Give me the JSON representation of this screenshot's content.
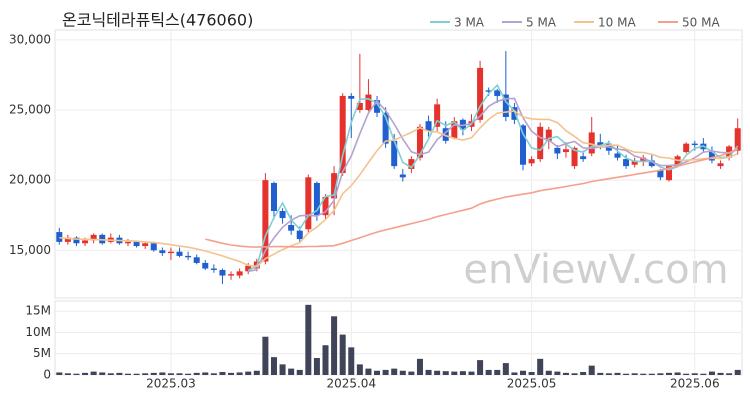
{
  "chart_data": {
    "type": "candlestick",
    "title": "온코닉테라퓨틱스(476060)",
    "watermark": "enViewV.com",
    "categories": [
      null,
      null,
      null,
      null,
      null,
      null,
      null,
      null,
      null,
      null,
      null,
      null,
      null,
      "2025.03",
      null,
      null,
      null,
      null,
      null,
      null,
      null,
      null,
      null,
      null,
      null,
      null,
      null,
      null,
      null,
      null,
      null,
      null,
      null,
      null,
      "2025.04",
      null,
      null,
      null,
      null,
      null,
      null,
      null,
      null,
      null,
      null,
      null,
      null,
      null,
      null,
      null,
      null,
      null,
      null,
      null,
      null,
      "2025.05",
      null,
      null,
      null,
      null,
      null,
      null,
      null,
      null,
      null,
      null,
      null,
      null,
      null,
      null,
      null,
      null,
      null,
      null,
      "2025.06",
      null,
      null,
      null,
      null,
      null
    ],
    "open": [
      16300,
      15600,
      15900,
      15500,
      15700,
      16100,
      15600,
      15900,
      15500,
      15600,
      15300,
      15500,
      15000,
      14800,
      14900,
      14600,
      14500,
      14100,
      13700,
      13600,
      13200,
      13200,
      13500,
      13700,
      14200,
      19800,
      17800,
      16800,
      16400,
      16500,
      19800,
      17500,
      18700,
      20500,
      26000,
      25000,
      25000,
      25700,
      24800,
      22800,
      20400,
      20800,
      21600,
      24200,
      23800,
      23700,
      23000,
      24300,
      23800,
      24300,
      26400,
      26400,
      26100,
      25200,
      23900,
      21200,
      21500,
      22800,
      22300,
      22000,
      21000,
      21700,
      21900,
      22700,
      22600,
      21900,
      21500,
      21100,
      21300,
      21400,
      20700,
      20000,
      21000,
      22000,
      22600,
      22600,
      22100,
      21000,
      21600,
      22100
    ],
    "high": [
      16600,
      16100,
      16000,
      15900,
      16200,
      16200,
      16200,
      16100,
      15800,
      15700,
      15600,
      15600,
      15200,
      15200,
      15200,
      14900,
      14700,
      14300,
      14000,
      13700,
      13500,
      13700,
      14100,
      14400,
      20500,
      19900,
      18000,
      17500,
      16700,
      20400,
      19900,
      19000,
      21000,
      26200,
      26200,
      29000,
      27200,
      26000,
      25200,
      23300,
      20800,
      21700,
      24000,
      24600,
      25800,
      24200,
      24500,
      24400,
      24700,
      28500,
      26600,
      26500,
      29200,
      25500,
      24000,
      21700,
      24100,
      23800,
      22500,
      22700,
      22400,
      22100,
      24500,
      23300,
      22800,
      22500,
      21800,
      21600,
      21800,
      21900,
      20800,
      21100,
      21800,
      22700,
      22800,
      23000,
      22400,
      21400,
      22500,
      24400
    ],
    "low": [
      15400,
      15400,
      15300,
      15300,
      15500,
      15400,
      15500,
      15400,
      15300,
      15200,
      15100,
      14900,
      14600,
      14300,
      14500,
      14300,
      14000,
      13600,
      13400,
      12600,
      12900,
      13000,
      13300,
      13500,
      14000,
      17200,
      16900,
      16100,
      15600,
      16300,
      17100,
      17200,
      17500,
      20300,
      23000,
      24800,
      24900,
      24500,
      22300,
      20800,
      19900,
      20500,
      21400,
      23100,
      23500,
      22600,
      22900,
      23200,
      23500,
      24100,
      26000,
      25500,
      24200,
      24000,
      20700,
      21000,
      21300,
      22200,
      21500,
      21600,
      20800,
      21300,
      21700,
      22200,
      21800,
      21400,
      20800,
      20900,
      21000,
      20900,
      20000,
      19900,
      20900,
      21900,
      22100,
      22000,
      21200,
      20800,
      21400,
      21800
    ],
    "close": [
      15600,
      15900,
      15500,
      15700,
      16100,
      15500,
      15900,
      15500,
      15600,
      15300,
      15500,
      15000,
      14800,
      14900,
      14600,
      14500,
      14100,
      13700,
      13600,
      13200,
      13300,
      13500,
      13900,
      14200,
      20000,
      17800,
      17300,
      16400,
      15800,
      20200,
      17500,
      18800,
      20500,
      26000,
      25800,
      25500,
      26100,
      24800,
      22600,
      21000,
      20200,
      21500,
      23800,
      23500,
      25400,
      22800,
      24200,
      23600,
      24200,
      28000,
      26300,
      26000,
      24500,
      24300,
      21100,
      21500,
      23800,
      23600,
      21900,
      22200,
      22300,
      21500,
      23400,
      22500,
      22100,
      21600,
      21000,
      21400,
      21600,
      21000,
      20200,
      21000,
      21700,
      22600,
      22500,
      22200,
      21400,
      21200,
      22400,
      23700
    ],
    "up_color": "#e5322d",
    "down_color": "#1f5fd0",
    "series": [
      {
        "name": "3 MA",
        "color": "#7fd0d4",
        "values": [
          null,
          null,
          null,
          null,
          null,
          null,
          null,
          null,
          null,
          null,
          null,
          null,
          null,
          null,
          null,
          null,
          null,
          null,
          null,
          null,
          null,
          null,
          13567,
          13867,
          16033,
          17333,
          18367,
          17167,
          16500,
          17467,
          17833,
          18833,
          18933,
          21767,
          24100,
          25767,
          25800,
          25467,
          24500,
          22800,
          21267,
          20900,
          21833,
          22933,
          24233,
          23900,
          24133,
          23533,
          24000,
          25267,
          26167,
          26767,
          25600,
          24933,
          23300,
          22300,
          22133,
          22967,
          23100,
          22567,
          22133,
          22000,
          22400,
          22467,
          22667,
          22067,
          21567,
          21333,
          21333,
          21333,
          20933,
          20733,
          20967,
          21767,
          22267,
          22433,
          22033,
          21600,
          21667,
          22433
        ]
      },
      {
        "name": "5 MA",
        "color": "#b5a2cf",
        "values": [
          null,
          null,
          null,
          null,
          null,
          null,
          null,
          null,
          null,
          null,
          null,
          null,
          null,
          null,
          null,
          null,
          null,
          null,
          null,
          null,
          null,
          null,
          13500,
          13620,
          14980,
          15880,
          16640,
          17140,
          17460,
          17500,
          17440,
          17740,
          18560,
          20600,
          21720,
          23320,
          24780,
          25640,
          24960,
          24000,
          22940,
          22020,
          21820,
          22000,
          22880,
          23400,
          23940,
          23900,
          24040,
          24560,
          25260,
          25620,
          25800,
          25820,
          24440,
          23480,
          23040,
          22860,
          22380,
          22600,
          22760,
          22300,
          22260,
          22380,
          22360,
          22220,
          22120,
          21720,
          21540,
          21320,
          21040,
          21040,
          21100,
          21300,
          21600,
          22000,
          22080,
          21980,
          21940,
          22180
        ]
      },
      {
        "name": "10 MA",
        "color": "#f2c38e",
        "values": [
          15900,
          15850,
          15800,
          15780,
          15760,
          15750,
          15720,
          15700,
          15680,
          15650,
          15600,
          15550,
          15480,
          15400,
          15300,
          15220,
          15100,
          14950,
          14780,
          14600,
          14400,
          14200,
          13930,
          13860,
          14400,
          14730,
          15050,
          15320,
          15540,
          16240,
          16660,
          17190,
          17850,
          19030,
          19610,
          20380,
          21260,
          22100,
          22780,
          22860,
          23130,
          23400,
          23730,
          23480,
          23440,
          23170,
          22980,
          22860,
          23020,
          23720,
          24330,
          24780,
          24850,
          24930,
          24500,
          24370,
          24330,
          24330,
          24100,
          23520,
          23120,
          22670,
          22560,
          22380,
          22480,
          22490,
          22210,
          21990,
          21960,
          21840,
          21630,
          21580,
          21410,
          21420,
          21460,
          21520,
          21560,
          21540,
          21620,
          21890
        ]
      },
      {
        "name": "50 MA",
        "color": "#f4a08c",
        "values": [
          null,
          null,
          null,
          null,
          null,
          null,
          null,
          null,
          null,
          null,
          null,
          null,
          null,
          null,
          null,
          null,
          null,
          15800,
          15650,
          15500,
          15380,
          15300,
          15250,
          15230,
          15250,
          15260,
          15260,
          15250,
          15240,
          15270,
          15280,
          15300,
          15330,
          15500,
          15700,
          15900,
          16100,
          16300,
          16450,
          16600,
          16750,
          16900,
          17050,
          17200,
          17400,
          17550,
          17700,
          17850,
          18000,
          18300,
          18500,
          18650,
          18800,
          18900,
          19000,
          19100,
          19250,
          19350,
          19450,
          19550,
          19650,
          19750,
          19900,
          20000,
          20100,
          20200,
          20300,
          20400,
          20500,
          20600,
          20700,
          20850,
          21000,
          21150,
          21300,
          21450,
          21600,
          21750,
          21950,
          22250
        ]
      }
    ],
    "ylim": [
      11600,
      30700
    ],
    "yticks": [
      {
        "value": 15000,
        "label": "15,000"
      },
      {
        "value": 20000,
        "label": "20,000"
      },
      {
        "value": 25000,
        "label": "25,000"
      },
      {
        "value": 30000,
        "label": "30,000"
      }
    ],
    "volume": {
      "color": "#3f4459",
      "values": [
        600000,
        400000,
        300000,
        500000,
        800000,
        600000,
        400000,
        500000,
        300000,
        300000,
        400000,
        500000,
        600000,
        400000,
        400000,
        300000,
        500000,
        600000,
        400000,
        700000,
        500000,
        600000,
        800000,
        1000000,
        9000000,
        4200000,
        2500000,
        1500000,
        1200000,
        16500000,
        4000000,
        7000000,
        13800000,
        9500000,
        6500000,
        2500000,
        1500000,
        1000000,
        1200000,
        1500000,
        1000000,
        800000,
        3800000,
        1200000,
        1000000,
        900000,
        800000,
        900000,
        800000,
        3500000,
        1200000,
        1200000,
        2800000,
        600000,
        1000000,
        700000,
        3800000,
        1000000,
        800000,
        500000,
        400000,
        700000,
        2200000,
        500000,
        400000,
        500000,
        300000,
        400000,
        300000,
        300000,
        400000,
        500000,
        600000,
        300000,
        400000,
        300000,
        800000,
        500000,
        400000,
        1200000
      ],
      "ylim": [
        0,
        17400000
      ],
      "yticks": [
        0,
        {
          "value": 5000000,
          "label": "5M"
        },
        {
          "value": 10000000,
          "label": "10M"
        },
        {
          "value": 15000000,
          "label": "15M"
        }
      ]
    },
    "grid": true
  }
}
